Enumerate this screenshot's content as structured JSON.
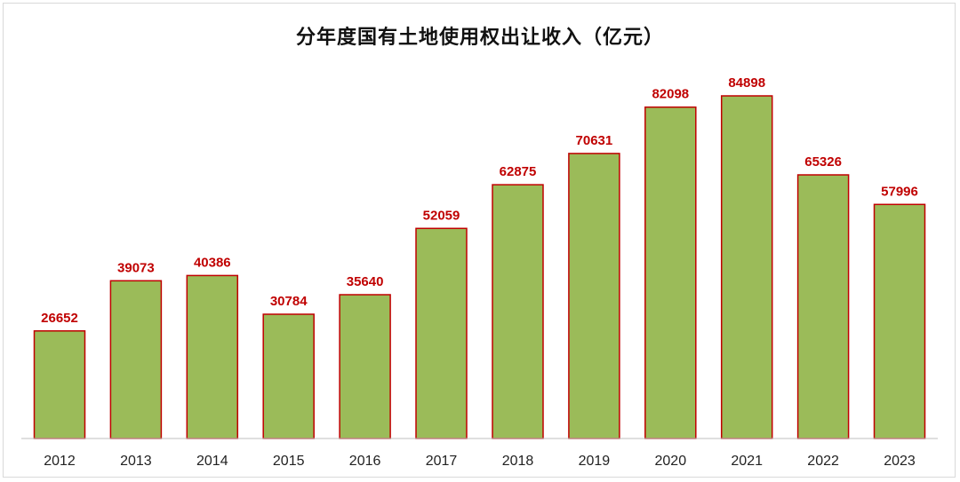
{
  "chart_data": {
    "type": "bar",
    "title": "分年度国有土地使用权出让收入（亿元）",
    "xlabel": "",
    "ylabel": "",
    "categories": [
      "2012",
      "2013",
      "2014",
      "2015",
      "2016",
      "2017",
      "2018",
      "2019",
      "2020",
      "2021",
      "2022",
      "2023"
    ],
    "values": [
      26652,
      39073,
      40386,
      30784,
      35640,
      52059,
      62875,
      70631,
      82098,
      84898,
      65326,
      57996
    ],
    "ylim": [
      0,
      95000
    ],
    "grid": false,
    "legend": "none",
    "colors": {
      "bar_fill": "#9bbb59",
      "bar_border": "#c00000",
      "value_label": "#c00000"
    }
  }
}
